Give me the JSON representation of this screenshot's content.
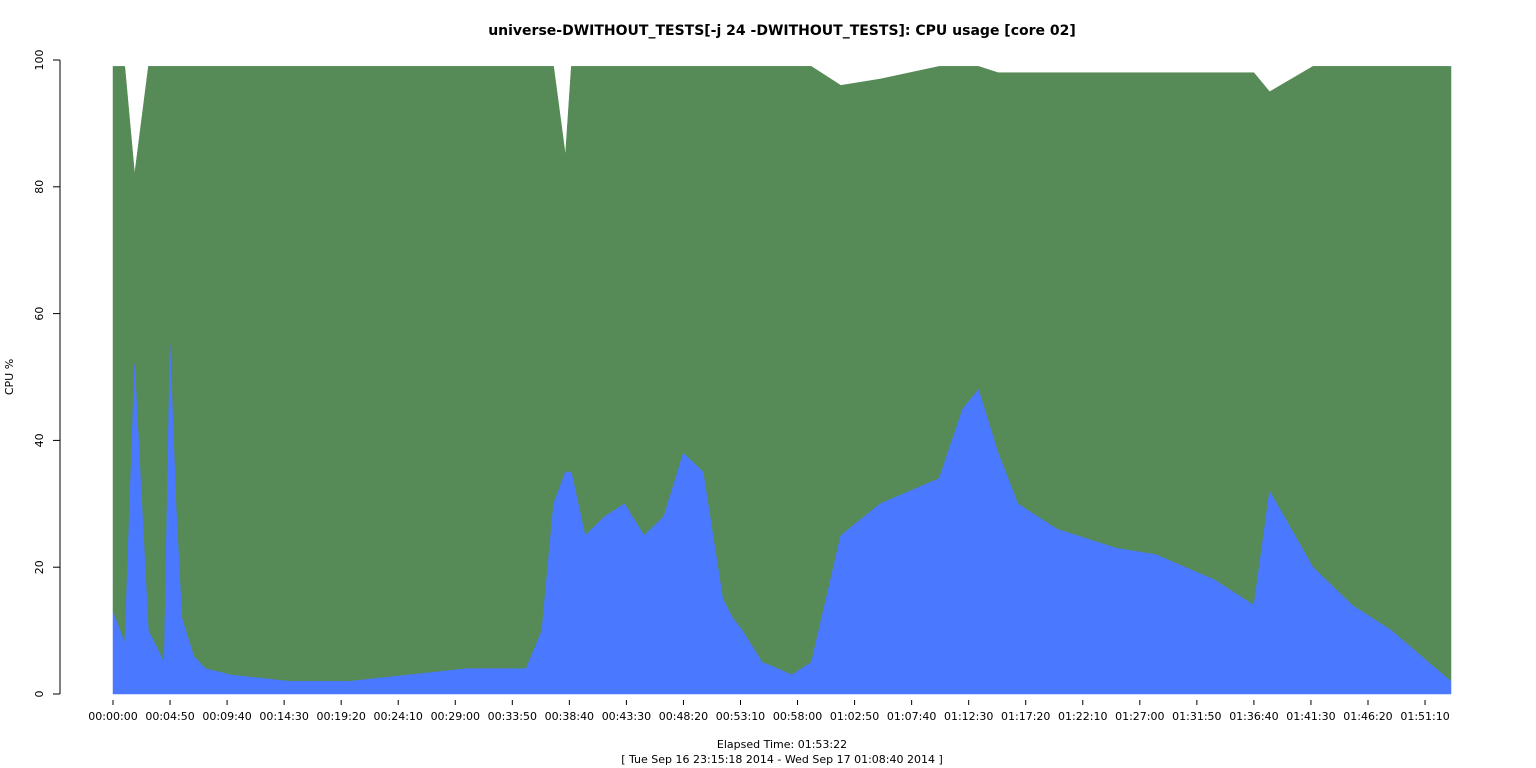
{
  "chart_data": {
    "type": "area",
    "title": "universe-DWITHOUT_TESTS[-j 24  -DWITHOUT_TESTS]: CPU usage [core 02]",
    "ylabel": "CPU %",
    "xlabel": "Elapsed Time: 01:53:22",
    "subtitle": "[ Tue Sep 16 23:15:18 2014 - Wed Sep 17 01:08:40 2014 ]",
    "ylim": [
      0,
      100
    ],
    "yticks": [
      0,
      20,
      40,
      60,
      80,
      100
    ],
    "xlim_seconds": [
      0,
      6802
    ],
    "xtick_labels": [
      "00:00:00",
      "00:04:50",
      "00:09:40",
      "00:14:30",
      "00:19:20",
      "00:24:10",
      "00:29:00",
      "00:33:50",
      "00:38:40",
      "00:43:30",
      "00:48:20",
      "00:53:10",
      "00:58:00",
      "01:02:50",
      "01:07:40",
      "01:12:30",
      "01:17:20",
      "01:22:10",
      "01:27:00",
      "01:31:50",
      "01:36:40",
      "01:41:30",
      "01:46:20",
      "01:51:10"
    ],
    "grid": false,
    "legend": "none",
    "colors": {
      "blue": "#4a78ff",
      "green": "#568a56"
    },
    "series": [
      {
        "x_seconds": [
          0,
          60,
          110,
          180,
          260,
          290,
          320,
          350,
          410,
          470,
          600,
          900,
          1200,
          1500,
          1800,
          2100,
          2100,
          2180,
          2240,
          2300,
          2330,
          2400,
          2500,
          2600,
          2700,
          2800,
          2900,
          3000,
          3100,
          3150,
          3200,
          3300,
          3380,
          3450,
          3550,
          3700,
          3900,
          4200,
          4320,
          4400,
          4500,
          4600,
          4700,
          4800,
          4900,
          5000,
          5100,
          5300,
          5600,
          5800,
          5880,
          6100,
          6300,
          6500,
          6650,
          6802
        ],
        "blue_pct": [
          13,
          8,
          52,
          10,
          5,
          55,
          30,
          12,
          6,
          4,
          3,
          2,
          2,
          3,
          4,
          4,
          4,
          10,
          30,
          35,
          35,
          25,
          28,
          30,
          25,
          28,
          38,
          35,
          15,
          12,
          10,
          5,
          4,
          3,
          5,
          25,
          30,
          34,
          45,
          48,
          38,
          30,
          28,
          26,
          25,
          24,
          23,
          22,
          18,
          14,
          32,
          20,
          14,
          10,
          6,
          2
        ],
        "total_pct": [
          99,
          99,
          82,
          99,
          99,
          99,
          99,
          99,
          99,
          99,
          99,
          99,
          99,
          99,
          99,
          99,
          99,
          99,
          99,
          85,
          99,
          99,
          99,
          99,
          99,
          99,
          99,
          99,
          99,
          99,
          99,
          99,
          99,
          99,
          99,
          96,
          97,
          99,
          99,
          99,
          98,
          98,
          98,
          98,
          98,
          98,
          98,
          98,
          98,
          98,
          95,
          99,
          99,
          99,
          99,
          99
        ]
      }
    ]
  }
}
